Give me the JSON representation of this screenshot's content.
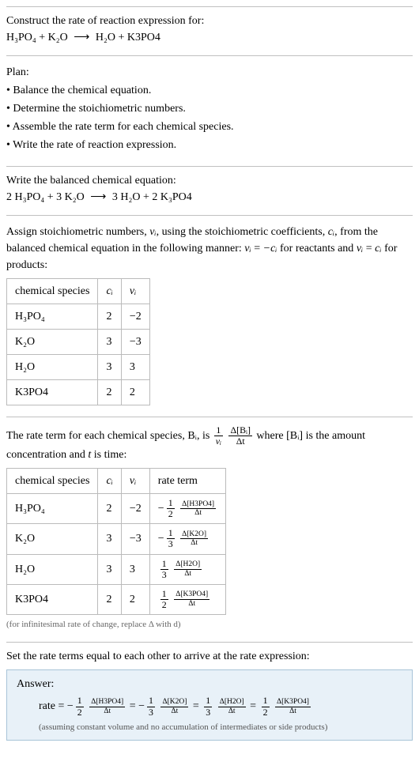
{
  "header": {
    "title": "Construct the rate of reaction expression for:",
    "equation_lhs": "H₃PO₄ + K₂O",
    "equation_rhs": "H₂O + K3PO4",
    "arrow": "⟶"
  },
  "plan": {
    "title": "Plan:",
    "bullets": [
      "Balance the chemical equation.",
      "Determine the stoichiometric numbers.",
      "Assemble the rate term for each chemical species.",
      "Write the rate of reaction expression."
    ]
  },
  "balanced": {
    "title": "Write the balanced chemical equation:",
    "equation_lhs": "2 H₃PO₄ + 3 K₂O",
    "equation_rhs": "3 H₂O + 2 K₃PO4",
    "arrow": "⟶"
  },
  "stoich": {
    "pretext1": "Assign stoichiometric numbers, ",
    "nu_i": "νᵢ",
    "pretext2": ", using the stoichiometric coefficients, ",
    "c_i": "cᵢ",
    "pretext3": ", from the balanced chemical equation in the following manner: ",
    "rel1_lhs": "νᵢ",
    "rel1_rhs": "−cᵢ",
    "midtext": " for reactants and ",
    "rel2_lhs": "νᵢ",
    "rel2_rhs": "cᵢ",
    "posttext": " for products:",
    "table": {
      "headers": [
        "chemical species",
        "cᵢ",
        "νᵢ"
      ],
      "rows": [
        [
          "H₃PO₄",
          "2",
          "−2"
        ],
        [
          "K₂O",
          "3",
          "−3"
        ],
        [
          "H₂O",
          "3",
          "3"
        ],
        [
          "K3PO4",
          "2",
          "2"
        ]
      ]
    }
  },
  "rateterm": {
    "pretext": "The rate term for each chemical species, Bᵢ, is ",
    "frac1_num": "1",
    "frac1_den": "νᵢ",
    "frac2_num": "Δ[Bᵢ]",
    "frac2_den": "Δt",
    "midtext": " where [Bᵢ] is the amount concentration and ",
    "t_label": "t",
    "posttext": " is time:",
    "table": {
      "headers": [
        "chemical species",
        "cᵢ",
        "νᵢ",
        "rate term"
      ],
      "rows": [
        {
          "species": "H₃PO₄",
          "c": "2",
          "nu": "−2",
          "sign": "−",
          "coef_num": "1",
          "coef_den": "2",
          "d_num": "Δ[H3PO4]",
          "d_den": "Δt"
        },
        {
          "species": "K₂O",
          "c": "3",
          "nu": "−3",
          "sign": "−",
          "coef_num": "1",
          "coef_den": "3",
          "d_num": "Δ[K2O]",
          "d_den": "Δt"
        },
        {
          "species": "H₂O",
          "c": "3",
          "nu": "3",
          "sign": "",
          "coef_num": "1",
          "coef_den": "3",
          "d_num": "Δ[H2O]",
          "d_den": "Δt"
        },
        {
          "species": "K3PO4",
          "c": "2",
          "nu": "2",
          "sign": "",
          "coef_num": "1",
          "coef_den": "2",
          "d_num": "Δ[K3PO4]",
          "d_den": "Δt"
        }
      ]
    },
    "note": "(for infinitesimal rate of change, replace Δ with d)"
  },
  "final": {
    "title": "Set the rate terms equal to each other to arrive at the rate expression:",
    "answer_label": "Answer:",
    "rate_label": "rate",
    "eq": "=",
    "terms": [
      {
        "sign": "−",
        "coef_num": "1",
        "coef_den": "2",
        "d_num": "Δ[H3PO4]",
        "d_den": "Δt"
      },
      {
        "sign": "−",
        "coef_num": "1",
        "coef_den": "3",
        "d_num": "Δ[K2O]",
        "d_den": "Δt"
      },
      {
        "sign": "",
        "coef_num": "1",
        "coef_den": "3",
        "d_num": "Δ[H2O]",
        "d_den": "Δt"
      },
      {
        "sign": "",
        "coef_num": "1",
        "coef_den": "2",
        "d_num": "Δ[K3PO4]",
        "d_den": "Δt"
      }
    ],
    "note": "(assuming constant volume and no accumulation of intermediates or side products)"
  },
  "colors": {
    "rule": "#c0c0c0",
    "table_border": "#bbbbbb",
    "answer_bg": "#e8f1f8",
    "answer_border": "#a8c4d8",
    "note_color": "#666666"
  }
}
